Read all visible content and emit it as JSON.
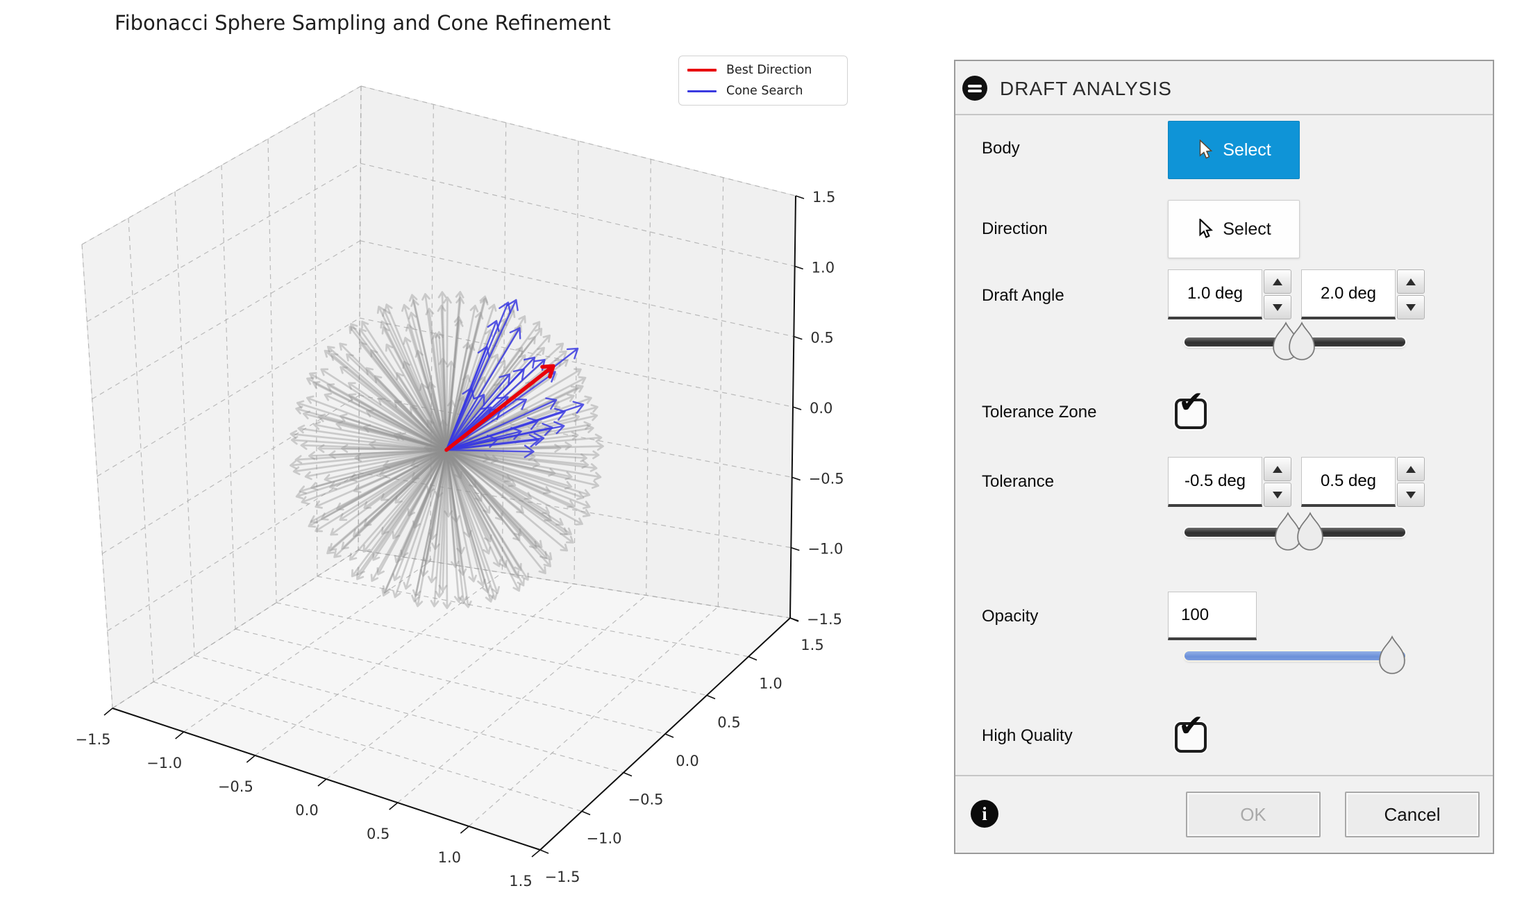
{
  "chart_data": {
    "type": "3d_quiver",
    "title": "Fibonacci Sphere Sampling and Cone Refinement",
    "legend": [
      {
        "label": "Best Direction",
        "color": "#e8000b",
        "line_width": 4.5
      },
      {
        "label": "Cone Search",
        "color": "#3a3ae0",
        "line_width": 3
      }
    ],
    "axes": {
      "xlim": [
        -1.5,
        1.5
      ],
      "ylim": [
        -1.5,
        1.5
      ],
      "zlim": [
        -1.5,
        1.5
      ],
      "x_ticks": [
        -1.5,
        -1.0,
        -0.5,
        0.0,
        0.5,
        1.0,
        1.5
      ],
      "y_ticks": [
        -1.5,
        -1.0,
        -0.5,
        0.0,
        0.5,
        1.0,
        1.5
      ],
      "z_ticks": [
        -1.5,
        -1.0,
        -0.5,
        0.0,
        0.5,
        1.0,
        1.5
      ],
      "grid": true,
      "grid_style": "dashed"
    },
    "series": [
      {
        "name": "sphere_samples",
        "style": "quiver",
        "distribution": "fibonacci_sphere",
        "count": 280,
        "color": "#8f8f8f",
        "opacity": 0.4,
        "line_width": 2.7,
        "length": 1.0
      },
      {
        "name": "cone_search",
        "style": "quiver",
        "distribution": "cone",
        "count": 28,
        "color": "#3a3ae0",
        "opacity": 0.85,
        "line_width": 2.4,
        "cone_axis": [
          0.659,
          0.106,
          0.744
        ],
        "cone_half_angle_deg": 33
      },
      {
        "name": "best_direction",
        "style": "quiver",
        "count": 1,
        "color": "#e8000b",
        "opacity": 1.0,
        "line_width": 5.5,
        "direction": [
          0.659,
          0.106,
          0.744
        ],
        "length": 1.08
      }
    ]
  },
  "dialog": {
    "title": "DRAFT ANALYSIS",
    "accent_blue": "#0f94d7",
    "rows": {
      "body": {
        "label": "Body",
        "button": "Select",
        "selected": true
      },
      "direction": {
        "label": "Direction",
        "button": "Select",
        "selected": false
      },
      "draft_angle": {
        "label": "Draft Angle",
        "min": "1.0 deg",
        "max": "2.0 deg",
        "slider_pos": [
          46,
          53
        ]
      },
      "tolerance_zone": {
        "label": "Tolerance Zone",
        "checked": true
      },
      "tolerance": {
        "label": "Tolerance",
        "min": "-0.5 deg",
        "max": "0.5 deg",
        "slider_pos": [
          47,
          57
        ]
      },
      "opacity": {
        "label": "Opacity",
        "value": "100",
        "slider_pos": 94
      },
      "high_quality": {
        "label": "High Quality",
        "checked": true
      }
    },
    "footer": {
      "ok": "OK",
      "ok_enabled": false,
      "cancel": "Cancel"
    }
  }
}
